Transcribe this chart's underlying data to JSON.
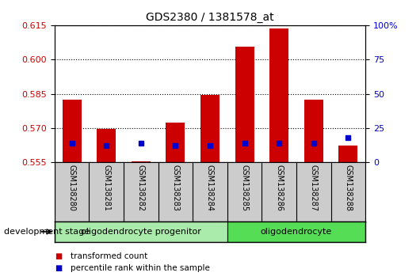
{
  "title": "GDS2380 / 1381578_at",
  "samples": [
    "GSM138280",
    "GSM138281",
    "GSM138282",
    "GSM138283",
    "GSM138284",
    "GSM138285",
    "GSM138286",
    "GSM138287",
    "GSM138288"
  ],
  "transformed_count": [
    0.5825,
    0.5695,
    0.5555,
    0.5725,
    0.5845,
    0.6055,
    0.6135,
    0.5825,
    0.5625
  ],
  "percentile_rank_values": [
    0.5635,
    0.5625,
    0.5635,
    0.5625,
    0.5625,
    0.5635,
    0.5635,
    0.5635,
    0.566
  ],
  "ylim_left": [
    0.555,
    0.615
  ],
  "ylim_right": [
    0,
    100
  ],
  "yticks_left": [
    0.555,
    0.57,
    0.585,
    0.6,
    0.615
  ],
  "yticks_right": [
    0,
    25,
    50,
    75,
    100
  ],
  "bar_color": "#cc0000",
  "percentile_color": "#0000cc",
  "tick_color_left": "#cc0000",
  "tick_color_right": "#0000cc",
  "groups": [
    {
      "label": "oligodendrocyte progenitor",
      "start": 0,
      "end": 5,
      "color": "#aaeaaa"
    },
    {
      "label": "oligodendrocyte",
      "start": 5,
      "end": 9,
      "color": "#55dd55"
    }
  ],
  "xlabel_area_label": "development stage",
  "legend_items": [
    {
      "label": "transformed count",
      "color": "#cc0000"
    },
    {
      "label": "percentile rank within the sample",
      "color": "#0000cc"
    }
  ],
  "bar_width": 0.55,
  "grid_color": "black",
  "ytick_label_fontsize": 8,
  "xtick_label_fontsize": 7,
  "group_label_fontsize": 8
}
